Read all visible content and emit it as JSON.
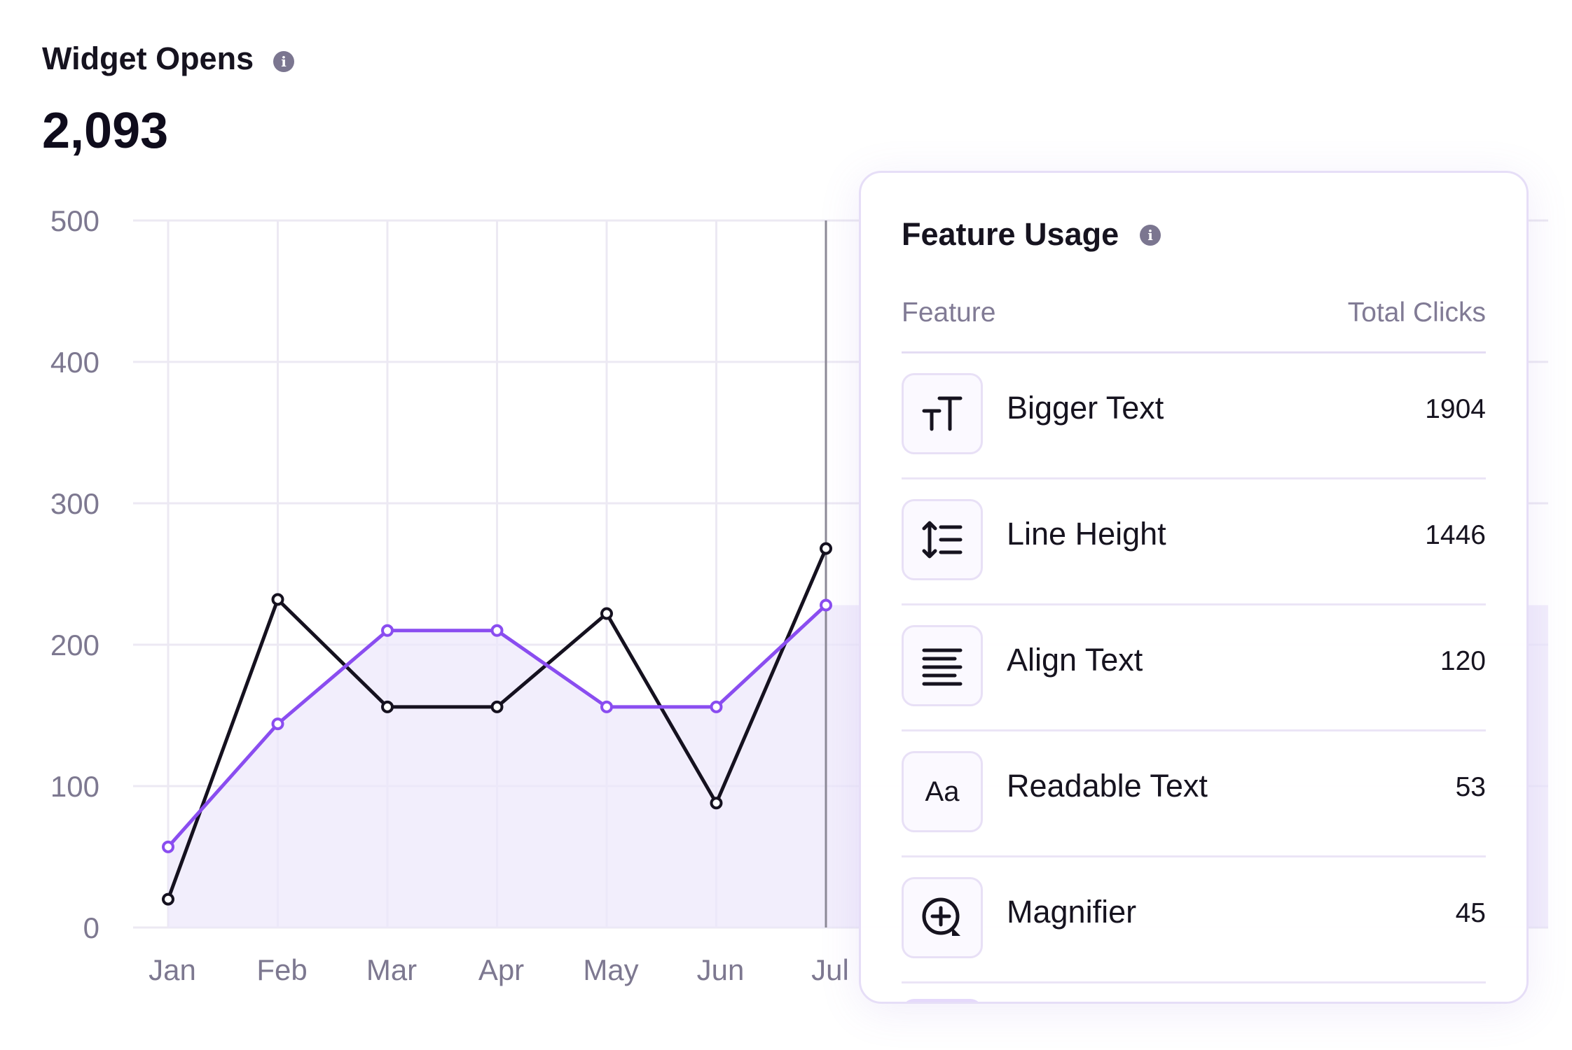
{
  "widget": {
    "title": "Widget Opens",
    "total": "2,093"
  },
  "chart_data": {
    "type": "line",
    "categories": [
      "Jan",
      "Feb",
      "Mar",
      "Apr",
      "May",
      "Jun",
      "Jul"
    ],
    "y_ticks": [
      "0",
      "100",
      "200",
      "300",
      "400",
      "500"
    ],
    "ylim": [
      0,
      500
    ],
    "grid": true,
    "series": [
      {
        "color": "#15111f",
        "values": [
          20,
          232,
          156,
          156,
          222,
          88,
          268
        ]
      },
      {
        "color": "#8a4df0",
        "values": [
          57,
          144,
          210,
          210,
          156,
          156,
          228
        ],
        "area_fill": "#ede7fb"
      }
    ],
    "hover_category": "Jul"
  },
  "feature_usage": {
    "title": "Feature Usage",
    "columns": {
      "feature": "Feature",
      "clicks": "Total Clicks"
    },
    "rows": [
      {
        "icon": "text-size-icon",
        "label": "Bigger Text",
        "value": "1904"
      },
      {
        "icon": "line-height-icon",
        "label": "Line Height",
        "value": "1446"
      },
      {
        "icon": "align-text-icon",
        "label": "Align Text",
        "value": "120"
      },
      {
        "icon": "readable-font-icon",
        "label": "Readable Text",
        "value": "53",
        "glyph": "Aa"
      },
      {
        "icon": "magnifier-icon",
        "label": "Magnifier",
        "value": "45"
      }
    ]
  }
}
